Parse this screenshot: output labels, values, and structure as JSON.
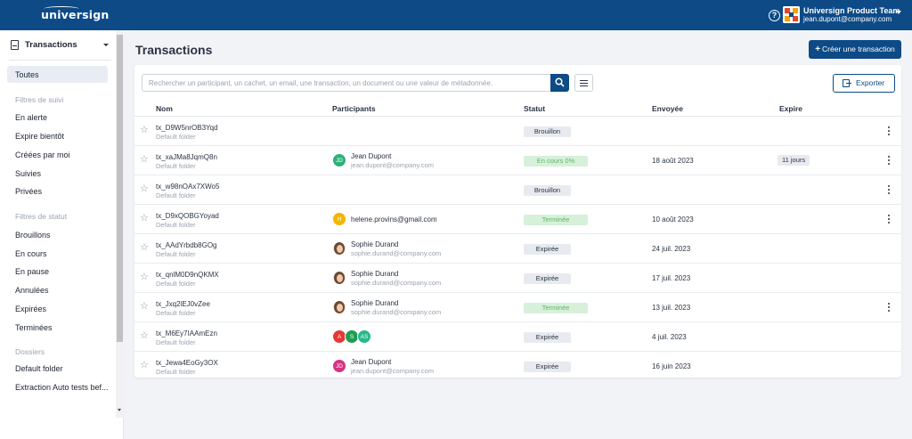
{
  "app": {
    "logo_text": "universign"
  },
  "topbar": {
    "team_name": "Universign Product Team",
    "team_email": "jean.dupont@company.com",
    "help_icon": "help-circle-icon"
  },
  "sidebar": {
    "header_label": "Transactions",
    "active_item": "Toutes",
    "section_tracking": "Filtres de suivi",
    "tracking_items": [
      "En alerte",
      "Expire bientôt",
      "Créées par moi",
      "Suivies",
      "Privées"
    ],
    "section_status": "Filtres de statut",
    "status_items": [
      "Brouillons",
      "En cours",
      "En pause",
      "Annulées",
      "Expirées",
      "Terminées"
    ],
    "section_folders": "Dossiers",
    "folder_items": [
      "Default folder",
      "Extraction Auto tests bef..."
    ]
  },
  "main": {
    "title": "Transactions",
    "create_button": "Créer une transaction",
    "search_placeholder": "Rechercher un participant, un cachet, un email, une transaction, un document ou une valeur de métadonnée.",
    "export_button": "Exporter",
    "columns": {
      "name": "Nom",
      "participants": "Participants",
      "status": "Statut",
      "sent": "Envoyée",
      "expire": "Expire"
    }
  },
  "colors": {
    "brand": "#0d4a86",
    "badge_grey": "#e7eaef",
    "badge_green": "#d6f0d9",
    "avatar_teal": "#2bb27a",
    "avatar_amber": "#f5b400",
    "avatar_red": "#e53935",
    "avatar_green": "#1f9d55",
    "avatar_mint": "#26b98a",
    "avatar_magenta": "#d63384"
  },
  "rows": [
    {
      "name": "tx_D9W5nrOB3Yqd",
      "folder": "Default folder",
      "participant_name": "",
      "participant_email": "",
      "status": "Brouillon",
      "sent": "",
      "expire": "",
      "menu": true
    },
    {
      "name": "tx_xaJMa8JqmQ8n",
      "folder": "Default folder",
      "avatar_initials": "JD",
      "participant_name": "Jean Dupont",
      "participant_email": "jean.dupont@company.com",
      "status": "En cours 0%",
      "sent": "18 août 2023",
      "expire": "11 jours",
      "menu": true
    },
    {
      "name": "tx_w98nOAx7XWo5",
      "folder": "Default folder",
      "participant_name": "",
      "participant_email": "",
      "status": "Brouillon",
      "sent": "",
      "expire": "",
      "menu": true
    },
    {
      "name": "tx_D9xQOBGYoyad",
      "folder": "Default folder",
      "avatar_initials": "H",
      "participant_single": "helene.provins@gmail.com",
      "status": "Terminée",
      "sent": "10 août 2023",
      "expire": "",
      "menu": true
    },
    {
      "name": "tx_AAdYrbdb8GOg",
      "folder": "Default folder",
      "participant_name": "Sophie Durand",
      "participant_email": "sophie.durand@company.com",
      "status": "Expirée",
      "sent": "24 juil. 2023",
      "expire": "",
      "menu": false
    },
    {
      "name": "tx_qnlM0D9nQKMX",
      "folder": "Default folder",
      "participant_name": "Sophie Durand",
      "participant_email": "sophie.durand@company.com",
      "status": "Expirée",
      "sent": "17 juil. 2023",
      "expire": "",
      "menu": false
    },
    {
      "name": "tx_Jxq2lEJ0vZee",
      "folder": "Default folder",
      "participant_name": "Sophie Durand",
      "participant_email": "sophie.durand@company.com",
      "status": "Terminée",
      "sent": "13 juil. 2023",
      "expire": "",
      "menu": true
    },
    {
      "name": "tx_M6Ey7IAAmEzn",
      "folder": "Default folder",
      "avatar_group": [
        "A",
        "S",
        "AS"
      ],
      "status": "Expirée",
      "sent": "4 juil. 2023",
      "expire": "",
      "menu": false
    },
    {
      "name": "tx_Jewa4EoGy3OX",
      "folder": "Default folder",
      "avatar_initials": "JD",
      "participant_name": "Jean Dupont",
      "participant_email": "jean.dupont@company.com",
      "status": "Expirée",
      "sent": "16 juin 2023",
      "expire": "",
      "menu": false
    }
  ]
}
